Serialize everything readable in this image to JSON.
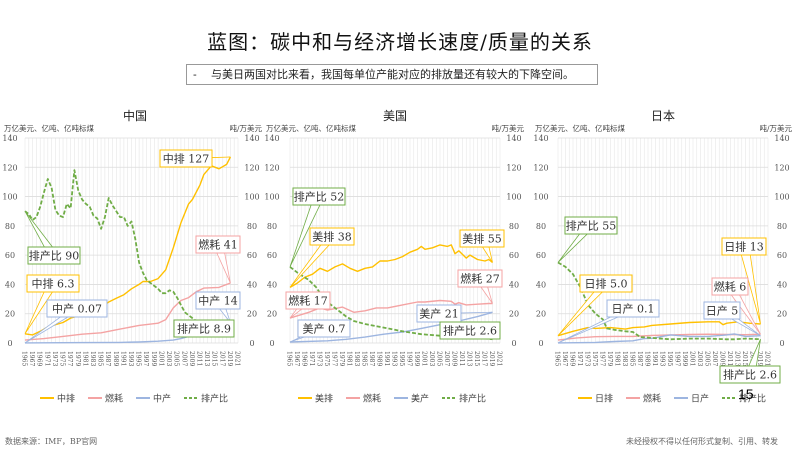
{
  "title": "蓝图：碳中和与经济增长速度/质量的关系",
  "subtitle": {
    "bullet": "-",
    "text": "与美日两国对比来看，我国每单位产能对应的排放量还有较大的下降空间。"
  },
  "page_number": "15",
  "footer": {
    "source": "数据来源：IMF，BP官网",
    "rights": "未经授权不得以任何形式复制、引用、转发"
  },
  "colors": {
    "emission": "#FFC000",
    "energy": "#F4A3A3",
    "gdp": "#9DB5E0",
    "ratio": "#70AD47"
  },
  "chart_data": [
    {
      "type": "line",
      "title": "中国",
      "ylabel_left": "万亿美元、亿吨、亿吨标煤",
      "ylabel_right": "吨/万美元",
      "ylim": [
        0,
        140
      ],
      "y2lim": [
        0,
        140
      ],
      "yticks": [
        0,
        20,
        40,
        60,
        80,
        100,
        120,
        140
      ],
      "xlim": [
        1965,
        2021
      ],
      "xticks": [
        "1965",
        "1967",
        "1969",
        "1971",
        "1973",
        "1975",
        "1977",
        "1979",
        "1981",
        "1983",
        "1985",
        "1987",
        "1989",
        "1991",
        "1993",
        "1995",
        "1997",
        "1999",
        "2001",
        "2003",
        "2005",
        "2007",
        "2009",
        "2011",
        "2013",
        "2015",
        "2017",
        "2019",
        "2021"
      ],
      "grid": true,
      "legend": "bottom",
      "series": [
        {
          "name": "中排",
          "key": "emission",
          "axis": "left",
          "x": [
            1965,
            1967,
            1969,
            1971,
            1973,
            1975,
            1977,
            1979,
            1981,
            1983,
            1985,
            1987,
            1989,
            1991,
            1993,
            1995,
            1996,
            1998,
            2000,
            2002,
            2004,
            2006,
            2008,
            2009,
            2011,
            2012,
            2014,
            2016,
            2018,
            2019
          ],
          "y": [
            6.3,
            5.5,
            8,
            11,
            12.5,
            14,
            17,
            18.5,
            18.5,
            21,
            24,
            28,
            30.5,
            33,
            37,
            40,
            42,
            42,
            44,
            50,
            65,
            82,
            95,
            98,
            108,
            115,
            121,
            119,
            122,
            127
          ]
        },
        {
          "name": "燃耗",
          "key": "energy",
          "axis": "left",
          "x": [
            1965,
            1970,
            1975,
            1980,
            1985,
            1990,
            1995,
            2000,
            2002,
            2004,
            2006,
            2008,
            2010,
            2012,
            2016,
            2019
          ],
          "y": [
            2,
            3,
            4.5,
            6,
            7,
            9.5,
            12,
            13.5,
            16,
            24,
            29,
            31,
            35,
            37.5,
            38,
            41
          ]
        },
        {
          "name": "中产",
          "key": "gdp",
          "axis": "left",
          "x": [
            1965,
            1980,
            1990,
            1995,
            2000,
            2004,
            2006,
            2008,
            2010,
            2012,
            2014,
            2016,
            2018,
            2019
          ],
          "y": [
            0.07,
            0.3,
            0.4,
            0.7,
            1.2,
            2,
            3,
            4.5,
            6,
            8.5,
            10.5,
            11.5,
            13.5,
            14
          ]
        },
        {
          "name": "排产比",
          "key": "ratio",
          "axis": "right",
          "dashed": true,
          "x": [
            1965,
            1966,
            1967,
            1968,
            1969,
            1970,
            1971,
            1972,
            1973,
            1974,
            1975,
            1976,
            1977,
            1978,
            1979,
            1980,
            1981,
            1982,
            1983,
            1984,
            1985,
            1986,
            1987,
            1988,
            1989,
            1990,
            1991,
            1992,
            1993,
            1994,
            1995,
            1996,
            1997,
            1998,
            1999,
            2000,
            2001,
            2002,
            2003,
            2004,
            2005,
            2006,
            2007,
            2008,
            2009,
            2010,
            2011,
            2012,
            2013,
            2014,
            2015,
            2016,
            2017,
            2018,
            2019
          ],
          "y": [
            90,
            88,
            84,
            86,
            93,
            103,
            112,
            106,
            91,
            87,
            86,
            95,
            92,
            118,
            104,
            98,
            95,
            93,
            87,
            85,
            78,
            86,
            99,
            94,
            90,
            86,
            86,
            80,
            83,
            71,
            55,
            48,
            43,
            41,
            39,
            37,
            34,
            34,
            36,
            35,
            31,
            26,
            21,
            19,
            17,
            15,
            13,
            12,
            11,
            11,
            10.5,
            10,
            9.5,
            9,
            8.9
          ]
        }
      ],
      "annotations": [
        {
          "text": "中排 127",
          "series": "emission",
          "year": 2019,
          "value": 127
        },
        {
          "text": "燃耗 41",
          "series": "energy",
          "year": 2019,
          "value": 41
        },
        {
          "text": "中产 14",
          "series": "gdp",
          "year": 2019,
          "value": 14
        },
        {
          "text": "排产比 8.9",
          "series": "ratio",
          "year": 2019,
          "value": 8.9
        },
        {
          "text": "排产比 90",
          "series": "ratio",
          "year": 1965,
          "value": 90
        },
        {
          "text": "中排 6.3",
          "series": "emission",
          "year": 1965,
          "value": 6.3
        },
        {
          "text": "中产 0.07",
          "series": "gdp",
          "year": 1965,
          "value": 0.07
        }
      ]
    },
    {
      "type": "line",
      "title": "美国",
      "ylabel_left": "万亿美元、亿吨、亿吨标煤",
      "ylabel_right": "吨/万美元",
      "ylim": [
        0,
        140
      ],
      "y2lim": [
        0,
        140
      ],
      "yticks": [
        0,
        20,
        40,
        60,
        80,
        100,
        120,
        140
      ],
      "xlim": [
        1965,
        2021
      ],
      "xticks": [
        "1965",
        "1967",
        "1969",
        "1971",
        "1973",
        "1975",
        "1977",
        "1979",
        "1981",
        "1983",
        "1985",
        "1987",
        "1989",
        "1991",
        "1993",
        "1995",
        "1997",
        "1999",
        "2001",
        "2003",
        "2005",
        "2007",
        "2009",
        "2011",
        "2013",
        "2015",
        "2017",
        "2019",
        "2021"
      ],
      "grid": true,
      "legend": "bottom",
      "series": [
        {
          "name": "美排",
          "key": "emission",
          "axis": "left",
          "x": [
            1965,
            1967,
            1969,
            1971,
            1973,
            1975,
            1977,
            1979,
            1981,
            1983,
            1985,
            1987,
            1989,
            1991,
            1993,
            1995,
            1997,
            1999,
            2000,
            2001,
            2003,
            2005,
            2007,
            2008,
            2009,
            2010,
            2012,
            2013,
            2015,
            2017,
            2018,
            2019
          ],
          "y": [
            38,
            41,
            45,
            47,
            51,
            49,
            52,
            54,
            51,
            49,
            51,
            52,
            56,
            56,
            57,
            59,
            62,
            64,
            66,
            64,
            65,
            67,
            66,
            67,
            61,
            63,
            58,
            60,
            57,
            56,
            57,
            55
          ]
        },
        {
          "name": "燃耗",
          "key": "energy",
          "axis": "left",
          "x": [
            1965,
            1970,
            1973,
            1975,
            1979,
            1982,
            1985,
            1988,
            1991,
            1995,
            1999,
            2001,
            2005,
            2008,
            2009,
            2010,
            2012,
            2015,
            2018,
            2019
          ],
          "y": [
            17,
            21,
            24,
            22.5,
            24.5,
            21,
            22,
            24,
            24,
            26,
            28,
            28,
            29,
            28.5,
            26.5,
            27.5,
            26,
            26.5,
            27,
            27
          ]
        },
        {
          "name": "美产",
          "key": "gdp",
          "axis": "left",
          "x": [
            1965,
            1975,
            1980,
            1985,
            1990,
            1995,
            2000,
            2005,
            2008,
            2010,
            2015,
            2019
          ],
          "y": [
            0.7,
            1.5,
            2.5,
            4,
            6,
            7.5,
            10,
            12.5,
            14.5,
            15,
            18,
            21
          ]
        },
        {
          "name": "排产比",
          "key": "ratio",
          "axis": "right",
          "dashed": true,
          "x": [
            1965,
            1967,
            1970,
            1972,
            1974,
            1977,
            1980,
            1982,
            1985,
            1990,
            1995,
            2000,
            2005,
            2010,
            2015,
            2019
          ],
          "y": [
            52,
            48,
            43,
            38,
            30,
            24,
            18,
            15,
            13,
            10.5,
            8,
            6,
            5,
            4,
            3.5,
            2.6
          ]
        }
      ],
      "annotations": [
        {
          "text": "排产比 52",
          "series": "ratio",
          "year": 1965,
          "value": 52
        },
        {
          "text": "美排 38",
          "series": "emission",
          "year": 1965,
          "value": 38
        },
        {
          "text": "美排 55",
          "series": "emission",
          "year": 2019,
          "value": 55
        },
        {
          "text": "燃耗 27",
          "series": "energy",
          "year": 2019,
          "value": 27
        },
        {
          "text": "燃耗 17",
          "series": "energy",
          "year": 1965,
          "value": 17
        },
        {
          "text": "美产 21",
          "series": "gdp",
          "year": 2019,
          "value": 21
        },
        {
          "text": "美产 0.7",
          "series": "gdp",
          "year": 1965,
          "value": 0.7
        },
        {
          "text": "排产比 2.6",
          "series": "ratio",
          "year": 2019,
          "value": 2.6
        }
      ]
    },
    {
      "type": "line",
      "title": "日本",
      "ylabel_left": "万亿美元、亿吨、亿吨标煤",
      "ylabel_right": "吨/万美元",
      "ylim": [
        0,
        140
      ],
      "y2lim": [
        0,
        140
      ],
      "yticks": [
        0,
        20,
        40,
        60,
        80,
        100,
        120,
        140
      ],
      "xlim": [
        1965,
        2021
      ],
      "xticks": [
        "1965",
        "1967",
        "1969",
        "1971",
        "1973",
        "1975",
        "1977",
        "1979",
        "1981",
        "1983",
        "1985",
        "1987",
        "1989",
        "1991",
        "1993",
        "1995",
        "1997",
        "1999",
        "2001",
        "2003",
        "2005",
        "2007",
        "2009",
        "2011",
        "2013",
        "2015",
        "2017",
        "2019",
        "2021"
      ],
      "grid": true,
      "legend": "bottom",
      "series": [
        {
          "name": "日排",
          "key": "emission",
          "axis": "left",
          "x": [
            1965,
            1969,
            1973,
            1975,
            1979,
            1983,
            1985,
            1988,
            1990,
            1995,
            2000,
            2005,
            2008,
            2009,
            2010,
            2013,
            2016,
            2019
          ],
          "y": [
            5,
            8,
            10.5,
            10,
            10.5,
            9.5,
            10.5,
            11,
            12,
            13,
            14,
            14.5,
            14.5,
            12.5,
            13.5,
            14.5,
            13.5,
            13
          ]
        },
        {
          "name": "燃耗",
          "key": "energy",
          "axis": "left",
          "x": [
            1965,
            1970,
            1975,
            1980,
            1985,
            1990,
            1995,
            2000,
            2005,
            2010,
            2015,
            2019
          ],
          "y": [
            2,
            3.5,
            4.3,
            4.5,
            4.5,
            5.2,
            5.5,
            5.8,
            6,
            5.8,
            5.7,
            6
          ]
        },
        {
          "name": "日产",
          "key": "gdp",
          "axis": "left",
          "x": [
            1965,
            1975,
            1980,
            1985,
            1988,
            1990,
            1995,
            2000,
            2005,
            2010,
            2012,
            2015,
            2019
          ],
          "y": [
            0.1,
            0.4,
            1,
            1.5,
            3,
            3.2,
            5.5,
            4.5,
            4.5,
            5.5,
            6.2,
            4.5,
            5
          ]
        },
        {
          "name": "排产比",
          "key": "ratio",
          "axis": "right",
          "dashed": true,
          "x": [
            1965,
            1967,
            1969,
            1971,
            1973,
            1975,
            1977,
            1978,
            1980,
            1983,
            1985,
            1987,
            1990,
            1995,
            2000,
            2005,
            2010,
            2012,
            2015,
            2019
          ],
          "y": [
            55,
            52,
            47,
            38,
            26,
            20,
            16,
            10,
            9,
            8,
            7.5,
            4,
            3.5,
            2.5,
            3,
            3,
            2.5,
            2.5,
            3,
            2.6
          ]
        }
      ],
      "annotations": [
        {
          "text": "排产比 55",
          "series": "ratio",
          "year": 1965,
          "value": 55
        },
        {
          "text": "日排 5.0",
          "series": "emission",
          "year": 1965,
          "value": 5.0
        },
        {
          "text": "日排 13",
          "series": "emission",
          "year": 2019,
          "value": 13
        },
        {
          "text": "燃耗 6",
          "series": "energy",
          "year": 2019,
          "value": 6
        },
        {
          "text": "日产 0.1",
          "series": "gdp",
          "year": 1965,
          "value": 0.1
        },
        {
          "text": "日产 5",
          "series": "gdp",
          "year": 2019,
          "value": 5
        },
        {
          "text": "排产比 2.6",
          "series": "ratio",
          "year": 2019,
          "value": 2.6
        }
      ]
    }
  ]
}
